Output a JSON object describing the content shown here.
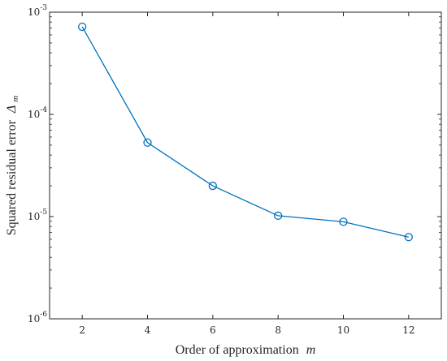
{
  "chart_data": {
    "type": "line",
    "title": "",
    "xlabel": "Order of approximation",
    "xlabel_var": "m",
    "ylabel": "Squared residual error",
    "ylabel_var": "Δ",
    "ylabel_sub": "m",
    "x": [
      2,
      4,
      6,
      8,
      10,
      12
    ],
    "series": [
      {
        "values": [
          0.00072,
          5.3e-05,
          2e-05,
          1.02e-05,
          8.9e-06,
          6.3e-06
        ],
        "color": "#0072BD",
        "marker": "circle"
      }
    ],
    "xlim": [
      1,
      13
    ],
    "ylim": [
      1e-06,
      0.001
    ],
    "yscale": "log",
    "xticks": [
      {
        "value": 2,
        "label": "2"
      },
      {
        "value": 4,
        "label": "4"
      },
      {
        "value": 6,
        "label": "6"
      },
      {
        "value": 8,
        "label": "8"
      },
      {
        "value": 10,
        "label": "10"
      },
      {
        "value": 12,
        "label": "12"
      }
    ],
    "yticks": [
      {
        "value": 1e-06,
        "base": "10",
        "exp": "-6"
      },
      {
        "value": 1e-05,
        "base": "10",
        "exp": "-5"
      },
      {
        "value": 0.0001,
        "base": "10",
        "exp": "-4"
      },
      {
        "value": 0.001,
        "base": "10",
        "exp": "-3"
      }
    ],
    "grid": false,
    "box": true,
    "colors": {
      "axis": "#262626",
      "series": "#0072BD"
    }
  }
}
